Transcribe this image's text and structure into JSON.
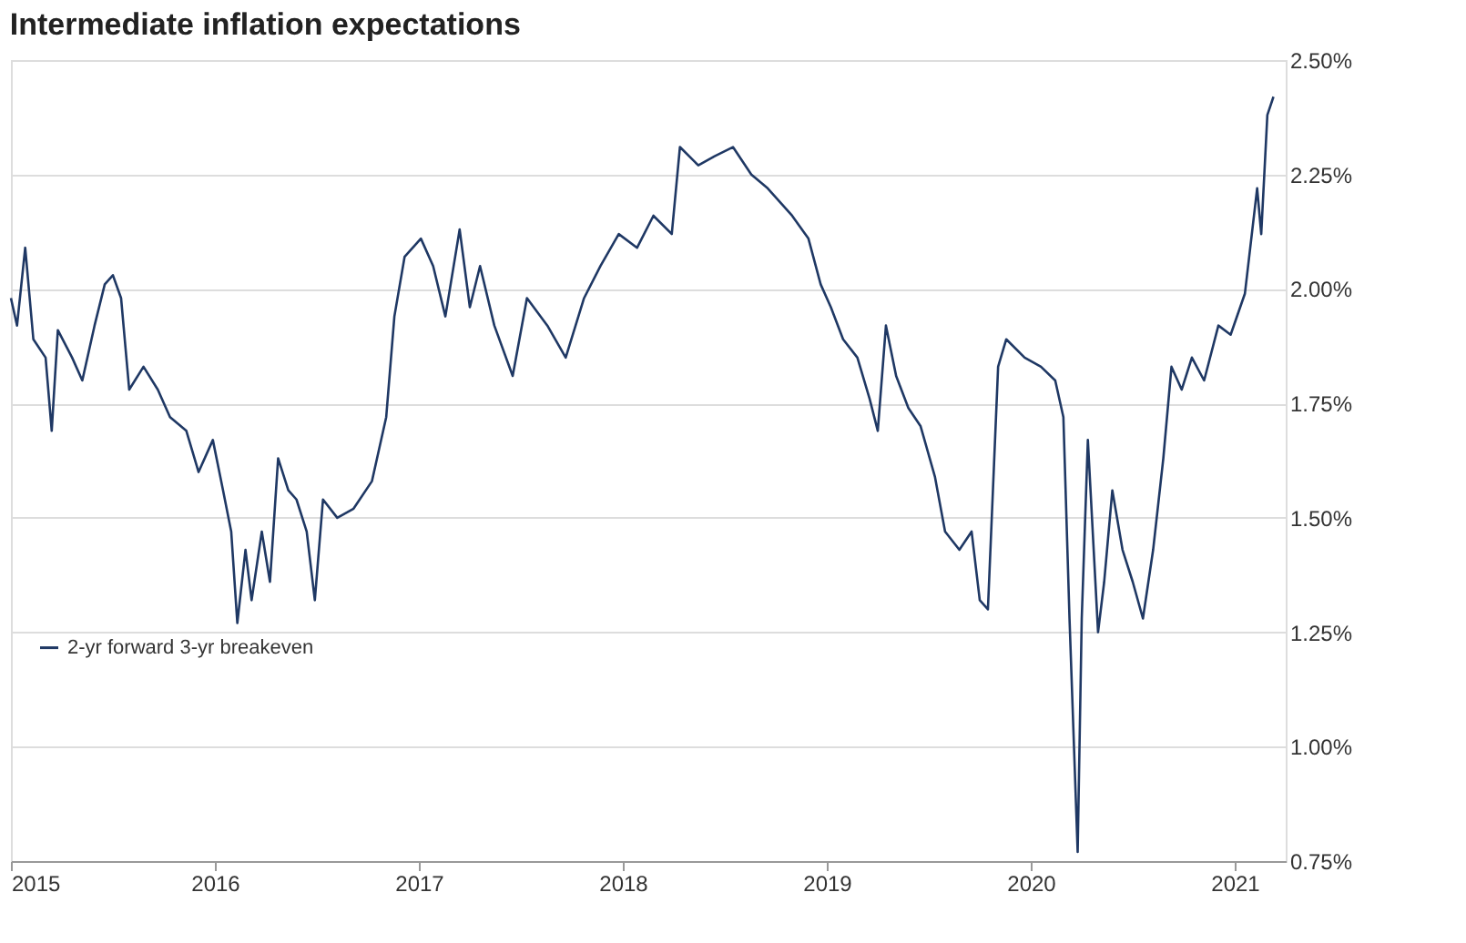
{
  "chart_data": {
    "type": "line",
    "title": "Intermediate inflation expectations",
    "x": [
      2015.0,
      2015.03,
      2015.07,
      2015.11,
      2015.17,
      2015.2,
      2015.23,
      2015.3,
      2015.35,
      2015.41,
      2015.46,
      2015.5,
      2015.54,
      2015.58,
      2015.65,
      2015.72,
      2015.78,
      2015.86,
      2015.92,
      2015.99,
      2016.04,
      2016.08,
      2016.11,
      2016.15,
      2016.18,
      2016.23,
      2016.27,
      2016.31,
      2016.36,
      2016.4,
      2016.45,
      2016.49,
      2016.53,
      2016.6,
      2016.68,
      2016.77,
      2016.84,
      2016.88,
      2016.93,
      2017.01,
      2017.07,
      2017.13,
      2017.2,
      2017.25,
      2017.3,
      2017.37,
      2017.46,
      2017.53,
      2017.63,
      2017.72,
      2017.81,
      2017.89,
      2017.98,
      2018.07,
      2018.15,
      2018.24,
      2018.28,
      2018.37,
      2018.45,
      2018.54,
      2018.63,
      2018.71,
      2018.83,
      2018.91,
      2018.97,
      2019.02,
      2019.08,
      2019.15,
      2019.21,
      2019.25,
      2019.29,
      2019.34,
      2019.4,
      2019.46,
      2019.53,
      2019.58,
      2019.65,
      2019.71,
      2019.75,
      2019.79,
      2019.84,
      2019.88,
      2019.97,
      2020.05,
      2020.12,
      2020.16,
      2020.19,
      2020.23,
      2020.25,
      2020.28,
      2020.33,
      2020.36,
      2020.4,
      2020.45,
      2020.5,
      2020.55,
      2020.6,
      2020.65,
      2020.69,
      2020.74,
      2020.79,
      2020.85,
      2020.92,
      2020.98,
      2021.05,
      2021.11,
      2021.13,
      2021.16,
      2021.19
    ],
    "series": [
      {
        "name": "2-yr forward 3-yr breakeven",
        "color": "#1f3864",
        "values": [
          1.98,
          1.92,
          2.09,
          1.89,
          1.85,
          1.69,
          1.91,
          1.85,
          1.8,
          1.92,
          2.01,
          2.03,
          1.98,
          1.78,
          1.83,
          1.78,
          1.72,
          1.69,
          1.6,
          1.67,
          1.56,
          1.47,
          1.27,
          1.43,
          1.32,
          1.47,
          1.36,
          1.63,
          1.56,
          1.54,
          1.47,
          1.32,
          1.54,
          1.5,
          1.52,
          1.58,
          1.72,
          1.94,
          2.07,
          2.11,
          2.05,
          1.94,
          2.13,
          1.96,
          2.05,
          1.92,
          1.81,
          1.98,
          1.92,
          1.85,
          1.98,
          2.05,
          2.12,
          2.09,
          2.16,
          2.12,
          2.31,
          2.27,
          2.29,
          2.31,
          2.25,
          2.22,
          2.16,
          2.11,
          2.01,
          1.96,
          1.89,
          1.85,
          1.76,
          1.69,
          1.92,
          1.81,
          1.74,
          1.7,
          1.59,
          1.47,
          1.43,
          1.47,
          1.32,
          1.3,
          1.83,
          1.89,
          1.85,
          1.83,
          1.8,
          1.72,
          1.28,
          0.77,
          1.28,
          1.67,
          1.25,
          1.36,
          1.56,
          1.43,
          1.36,
          1.28,
          1.43,
          1.63,
          1.83,
          1.78,
          1.85,
          1.8,
          1.92,
          1.9,
          1.99,
          2.22,
          2.12,
          2.38,
          2.42
        ]
      }
    ],
    "xlim": [
      2015,
      2021.25
    ],
    "xticks": [
      2015,
      2016,
      2017,
      2018,
      2019,
      2020,
      2021
    ],
    "ylim": [
      0.75,
      2.5
    ],
    "yticks": [
      {
        "value": 0.75,
        "label": "0.75%"
      },
      {
        "value": 1.0,
        "label": "1.00%"
      },
      {
        "value": 1.25,
        "label": "1.25%"
      },
      {
        "value": 1.5,
        "label": "1.50%"
      },
      {
        "value": 1.75,
        "label": "1.75%"
      },
      {
        "value": 2.0,
        "label": "2.00%"
      },
      {
        "value": 2.25,
        "label": "2.25%"
      },
      {
        "value": 2.5,
        "label": "2.50%"
      }
    ],
    "grid": "y",
    "legend": "left",
    "line_style": "solid",
    "marker": "none"
  }
}
